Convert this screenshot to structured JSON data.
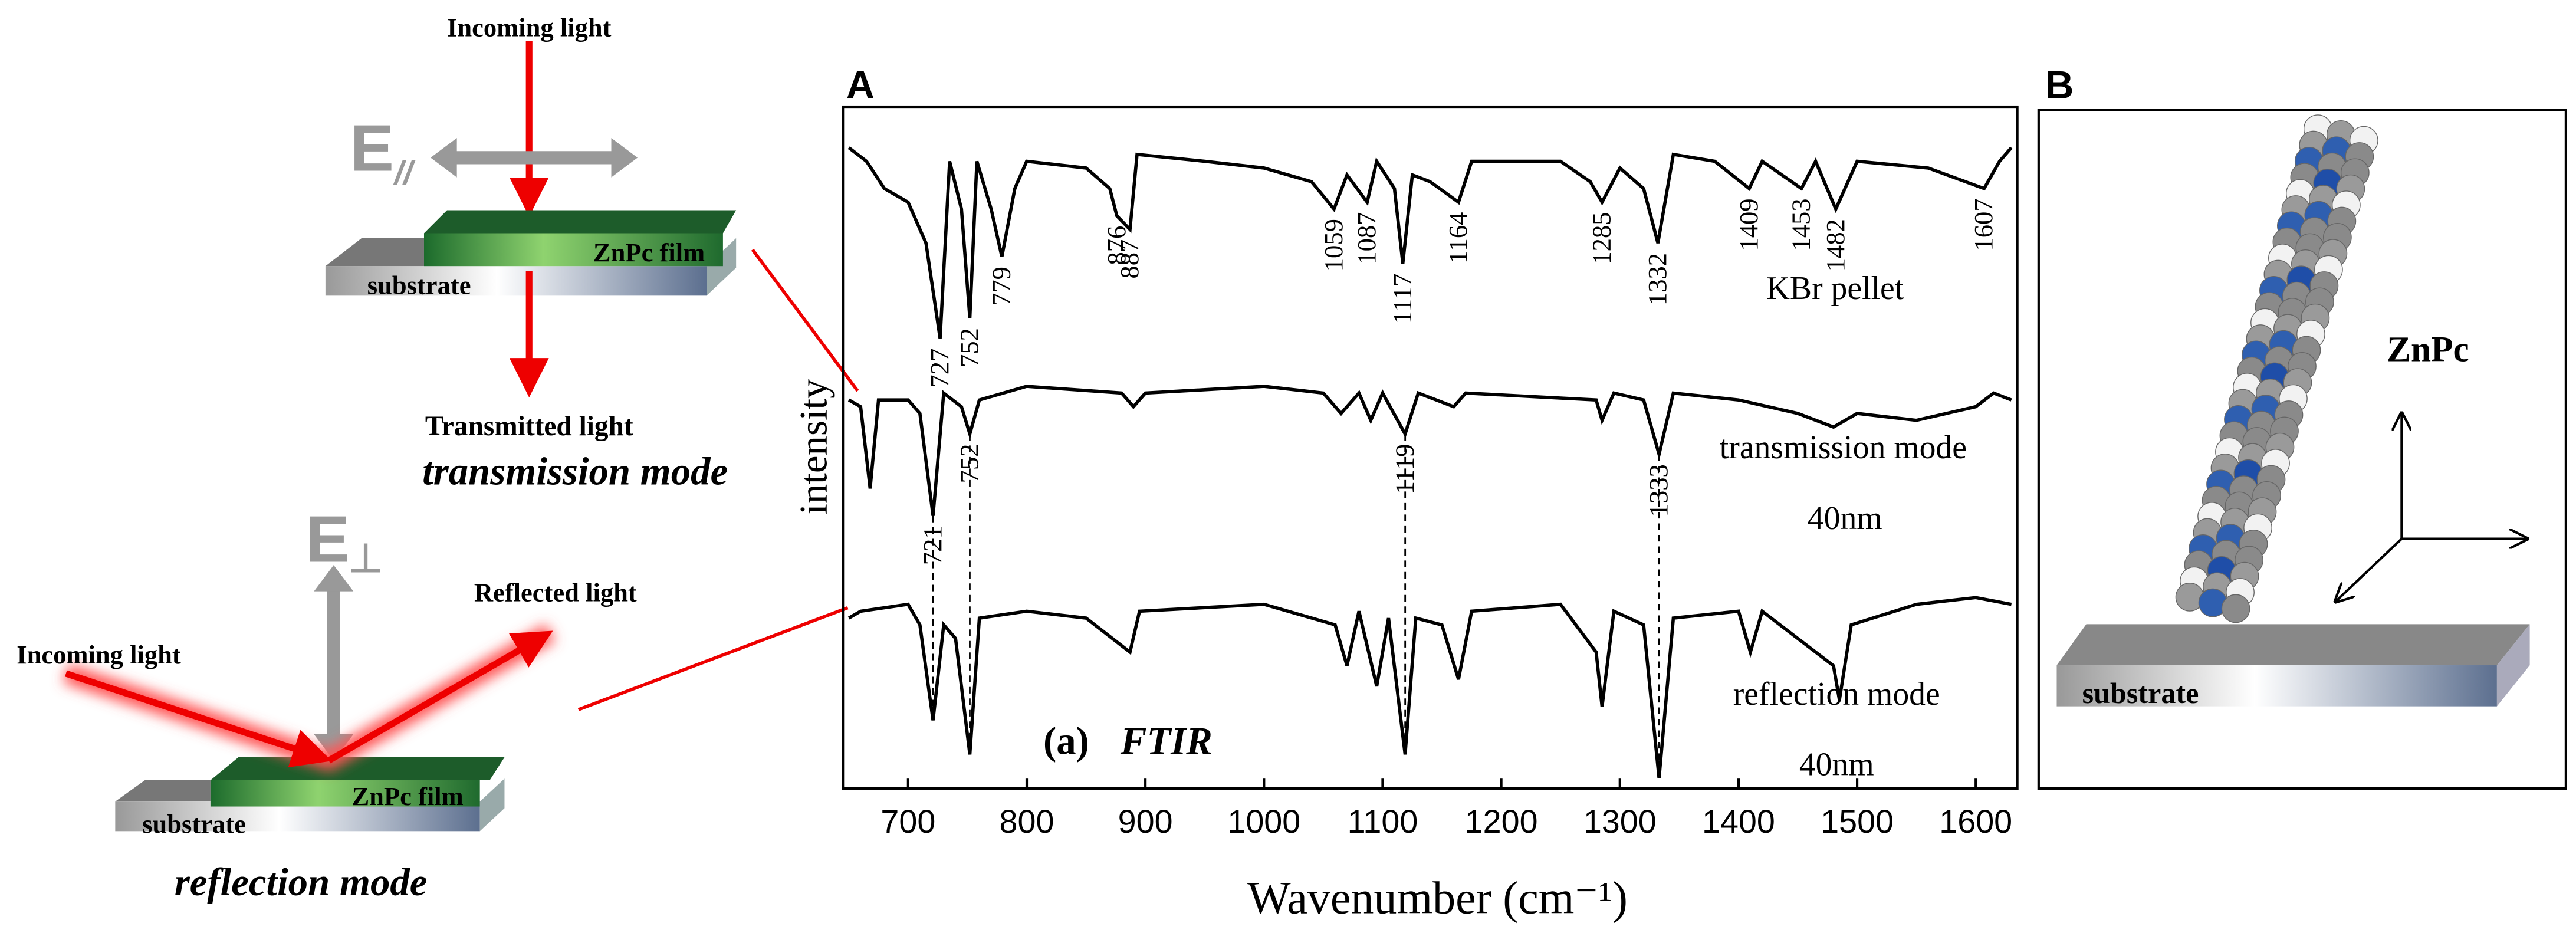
{
  "chart_data": {
    "type": "line",
    "panel": "A",
    "x_label": "Wavenumber (cm⁻¹)",
    "y_label": "intensity",
    "xlim": [
      645,
      1635
    ],
    "ylim": [
      0,
      100
    ],
    "xticks": [
      700,
      800,
      900,
      1000,
      1100,
      1200,
      1300,
      1400,
      1500,
      1600
    ],
    "annotations": [
      "KBr pellet",
      "transmission mode",
      "40nm",
      "reflection mode",
      "40nm",
      "(a)",
      "FTIR"
    ],
    "series": [
      {
        "name": "KBr pellet",
        "color": "#000000",
        "x": [
          650,
          665,
          680,
          700,
          715,
          727,
          735,
          745,
          752,
          758,
          770,
          779,
          790,
          800,
          850,
          870,
          876,
          887,
          893,
          950,
          1000,
          1040,
          1059,
          1070,
          1087,
          1095,
          1110,
          1117,
          1125,
          1140,
          1164,
          1175,
          1250,
          1275,
          1285,
          1300,
          1320,
          1332,
          1345,
          1380,
          1409,
          1420,
          1453,
          1465,
          1482,
          1500,
          1560,
          1607,
          1620,
          1630
        ],
        "values": [
          94,
          92,
          88,
          86,
          80,
          66,
          92,
          85,
          69,
          92,
          85,
          78,
          88,
          92,
          91,
          88,
          84,
          82,
          93,
          92,
          91,
          89,
          85,
          90,
          86,
          92,
          88,
          77,
          90,
          89,
          86,
          92,
          92,
          89,
          86,
          91,
          88,
          80,
          93,
          92,
          88,
          92,
          88,
          92,
          85,
          92,
          91,
          88,
          92,
          94
        ],
        "peaks": [
          727,
          752,
          779,
          876,
          887,
          1059,
          1087,
          1117,
          1164,
          1285,
          1332,
          1409,
          1453,
          1482,
          1607
        ]
      },
      {
        "name": "transmission mode",
        "color": "#000000",
        "x": [
          650,
          660,
          668,
          675,
          700,
          710,
          721,
          730,
          745,
          752,
          760,
          800,
          880,
          890,
          900,
          1000,
          1050,
          1065,
          1080,
          1090,
          1100,
          1119,
          1130,
          1160,
          1170,
          1280,
          1285,
          1295,
          1320,
          1333,
          1345,
          1400,
          1450,
          1480,
          1500,
          1550,
          1600,
          1615,
          1630
        ],
        "values": [
          57,
          56,
          44,
          57,
          57,
          55,
          40,
          58,
          56,
          52,
          57,
          59,
          58,
          56,
          58,
          59,
          58,
          55,
          58,
          54,
          58,
          52,
          58,
          56,
          58,
          57,
          54,
          58,
          57,
          49,
          58,
          57,
          55,
          53,
          55,
          54,
          56,
          58,
          57
        ],
        "peaks": [
          721,
          752,
          1119,
          1333
        ]
      },
      {
        "name": "reflection mode",
        "color": "#000000",
        "x": [
          650,
          660,
          700,
          710,
          721,
          730,
          740,
          752,
          760,
          800,
          850,
          887,
          895,
          1000,
          1060,
          1070,
          1080,
          1095,
          1105,
          1119,
          1128,
          1150,
          1164,
          1175,
          1250,
          1280,
          1285,
          1295,
          1320,
          1333,
          1345,
          1400,
          1410,
          1420,
          1480,
          1485,
          1495,
          1550,
          1600,
          1630
        ],
        "values": [
          25,
          26,
          27,
          24,
          10,
          24,
          22,
          5,
          25,
          26,
          25,
          20,
          26,
          27,
          24,
          18,
          26,
          15,
          25,
          5,
          25,
          24,
          16,
          26,
          27,
          20,
          12,
          26,
          24,
          1.5,
          25,
          26,
          20,
          26,
          18,
          13,
          24,
          27,
          28,
          27
        ]
      }
    ]
  },
  "panels": {
    "B": "B"
  },
  "transmission_diagram": {
    "incoming": "Incoming light",
    "e_label": "E",
    "e_sub": "//",
    "film": "ZnPc film",
    "substrate": "substrate",
    "transmitted": "Transmitted light",
    "mode": "transmission mode"
  },
  "reflection_diagram": {
    "e_label": "E",
    "e_sub": "⊥",
    "reflected": "Reflected light",
    "incoming": "Incoming light",
    "film": "ZnPc film",
    "substrate": "substrate",
    "mode": "reflection mode"
  },
  "molecule_diagram": {
    "molecule": "ZnPc",
    "substrate": "substrate"
  }
}
